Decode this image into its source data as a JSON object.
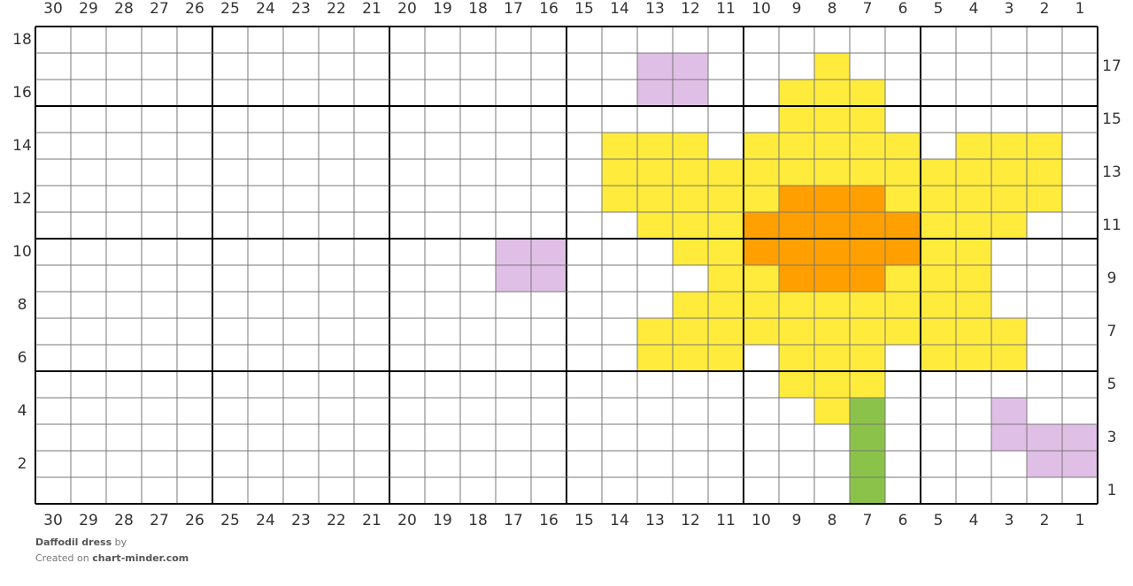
{
  "column_labels_top": [
    30,
    29,
    28,
    27,
    26,
    25,
    24,
    23,
    22,
    21,
    20,
    19,
    18,
    17,
    16,
    15,
    14,
    13,
    12,
    11,
    10,
    9,
    8,
    7,
    6,
    5,
    4,
    3,
    2,
    1
  ],
  "column_labels_bottom": [
    30,
    29,
    28,
    27,
    26,
    25,
    24,
    23,
    22,
    21,
    20,
    19,
    18,
    17,
    16,
    15,
    14,
    13,
    12,
    11,
    10,
    9,
    8,
    7,
    6,
    5,
    4,
    3,
    2,
    1
  ],
  "row_labels_left": [
    18,
    16,
    14,
    12,
    10,
    8,
    6,
    4,
    2
  ],
  "row_labels_right": [
    17,
    15,
    13,
    11,
    9,
    7,
    5,
    3,
    1
  ],
  "cells": [
    {
      "row": 17,
      "cols": [
        13,
        12
      ],
      "color": "#e0bfe6"
    },
    {
      "row": 17,
      "cols": [
        8
      ],
      "color": "#ffeb3b"
    },
    {
      "row": 16,
      "cols": [
        13,
        12
      ],
      "color": "#e0bfe6"
    },
    {
      "row": 16,
      "cols": [
        9,
        8,
        7
      ],
      "color": "#ffeb3b"
    },
    {
      "row": 15,
      "cols": [
        9,
        8,
        7
      ],
      "color": "#ffeb3b"
    },
    {
      "row": 14,
      "cols": [
        14,
        13,
        12,
        10,
        9,
        8,
        7,
        6,
        4,
        3,
        2
      ],
      "color": "#ffeb3b"
    },
    {
      "row": 13,
      "cols": [
        14,
        13,
        12,
        11,
        10,
        9,
        8,
        7,
        6,
        5,
        4,
        3,
        2
      ],
      "color": "#ffeb3b"
    },
    {
      "row": 12,
      "cols": [
        14,
        13,
        12,
        11,
        10,
        6,
        5,
        4,
        3,
        2
      ],
      "color": "#ffeb3b"
    },
    {
      "row": 12,
      "cols": [
        9,
        8,
        7
      ],
      "color": "#ffa000"
    },
    {
      "row": 11,
      "cols": [
        13,
        12,
        11,
        5,
        4,
        3
      ],
      "color": "#ffeb3b"
    },
    {
      "row": 11,
      "cols": [
        10,
        9,
        8,
        7,
        6
      ],
      "color": "#ffa000"
    },
    {
      "row": 10,
      "cols": [
        17,
        16
      ],
      "color": "#e0bfe6"
    },
    {
      "row": 10,
      "cols": [
        12,
        11,
        5,
        4
      ],
      "color": "#ffeb3b"
    },
    {
      "row": 10,
      "cols": [
        10,
        9,
        8,
        7,
        6
      ],
      "color": "#ffa000"
    },
    {
      "row": 9,
      "cols": [
        17,
        16
      ],
      "color": "#e0bfe6"
    },
    {
      "row": 9,
      "cols": [
        11,
        10,
        6,
        5,
        4
      ],
      "color": "#ffeb3b"
    },
    {
      "row": 9,
      "cols": [
        9,
        8,
        7
      ],
      "color": "#ffa000"
    },
    {
      "row": 8,
      "cols": [
        12,
        11,
        10,
        9,
        8,
        7,
        6,
        5,
        4
      ],
      "color": "#ffeb3b"
    },
    {
      "row": 7,
      "cols": [
        13,
        12,
        11,
        10,
        9,
        8,
        7,
        6,
        5,
        4,
        3
      ],
      "color": "#ffeb3b"
    },
    {
      "row": 6,
      "cols": [
        13,
        12,
        11,
        9,
        8,
        7,
        5,
        4,
        3
      ],
      "color": "#ffeb3b"
    },
    {
      "row": 5,
      "cols": [
        9,
        8,
        7
      ],
      "color": "#ffeb3b"
    },
    {
      "row": 4,
      "cols": [
        8
      ],
      "color": "#ffeb3b"
    },
    {
      "row": 4,
      "cols": [
        7
      ],
      "color": "#8bc34a"
    },
    {
      "row": 4,
      "cols": [
        3
      ],
      "color": "#e0bfe6"
    },
    {
      "row": 3,
      "cols": [
        7
      ],
      "color": "#8bc34a"
    },
    {
      "row": 3,
      "cols": [
        3,
        2,
        1
      ],
      "color": "#e0bfe6"
    },
    {
      "row": 2,
      "cols": [
        7
      ],
      "color": "#8bc34a"
    },
    {
      "row": 2,
      "cols": [
        2,
        1
      ],
      "color": "#e0bfe6"
    },
    {
      "row": 1,
      "cols": [
        7
      ],
      "color": "#8bc34a"
    }
  ],
  "footer": {
    "title": "Daffodil dress",
    "by": "by",
    "created": "Created on",
    "site": "chart-minder.com"
  }
}
